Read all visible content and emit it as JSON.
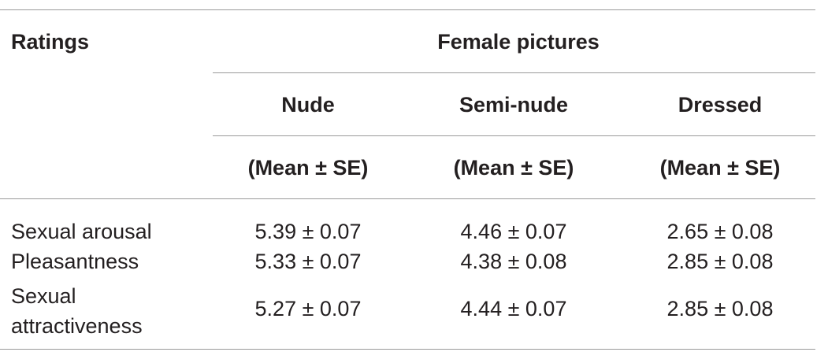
{
  "table": {
    "header": {
      "ratings": "Ratings",
      "group": "Female pictures",
      "columns": [
        "Nude",
        "Semi-nude",
        "Dressed"
      ],
      "stat": [
        "(Mean ± SE)",
        "(Mean ± SE)",
        "(Mean ± SE)"
      ]
    },
    "rows": [
      {
        "label": "Sexual arousal",
        "values": [
          "5.39 ± 0.07",
          "4.46 ± 0.07",
          "2.65 ± 0.08"
        ]
      },
      {
        "label": "Pleasantness",
        "values": [
          "5.33 ± 0.07",
          "4.38 ± 0.08",
          "2.85 ± 0.08"
        ]
      },
      {
        "label": "Sexual attractiveness",
        "values": [
          "5.27 ± 0.07",
          "4.44 ± 0.07",
          "2.85 ± 0.08"
        ]
      }
    ]
  }
}
